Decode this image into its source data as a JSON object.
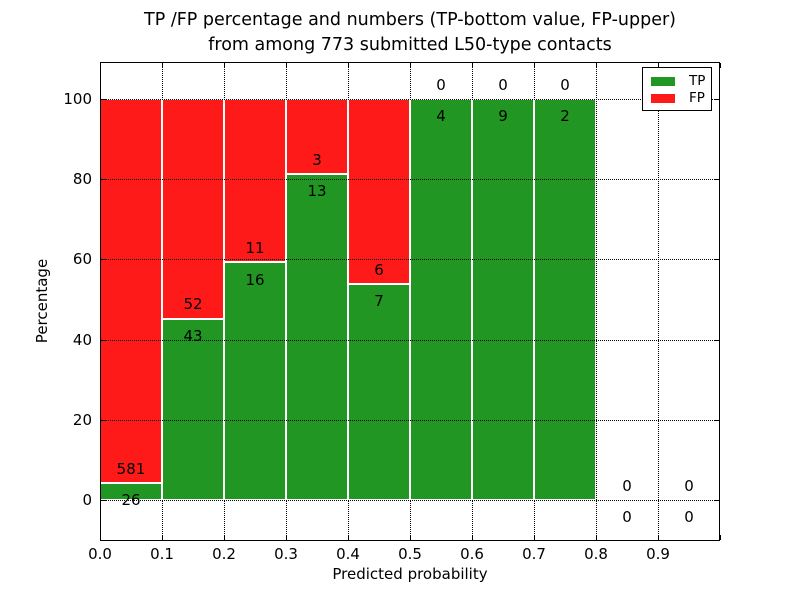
{
  "chart_data": {
    "type": "bar",
    "stacked": true,
    "title_lines": [
      "TP /FP percentage and numbers (TP-bottom value, FP-upper)",
      "from among 773 submitted L50-type contacts"
    ],
    "xlabel": "Predicted probability",
    "ylabel": "Percentage",
    "xlim": [
      0.0,
      1.0
    ],
    "ylim": [
      -10.2,
      109.2
    ],
    "x_tick_labels": [
      "0.0",
      "0.1",
      "0.2",
      "0.3",
      "0.4",
      "0.5",
      "0.6",
      "0.7",
      "0.8",
      "0.9"
    ],
    "y_tick_values": [
      0,
      20,
      40,
      60,
      80,
      100
    ],
    "grid_style": "dotted",
    "total_contacts": 773,
    "annotation_note": "TP-bottom value, FP-upper",
    "legend": {
      "position": "upper right",
      "entries": [
        {
          "label": "TP",
          "color": "#229622"
        },
        {
          "label": "FP",
          "color": "#ff1a1a"
        }
      ]
    },
    "bars": [
      {
        "bin_start": 0.0,
        "bin_end": 0.1,
        "tp_count": 26,
        "fp_count": 581,
        "tp_pct": 4.28,
        "fp_pct": 95.72
      },
      {
        "bin_start": 0.1,
        "bin_end": 0.2,
        "tp_count": 43,
        "fp_count": 52,
        "tp_pct": 45.26,
        "fp_pct": 54.74
      },
      {
        "bin_start": 0.2,
        "bin_end": 0.3,
        "tp_count": 16,
        "fp_count": 11,
        "tp_pct": 59.26,
        "fp_pct": 40.74
      },
      {
        "bin_start": 0.3,
        "bin_end": 0.4,
        "tp_count": 13,
        "fp_count": 3,
        "tp_pct": 81.25,
        "fp_pct": 18.75
      },
      {
        "bin_start": 0.4,
        "bin_end": 0.5,
        "tp_count": 7,
        "fp_count": 6,
        "tp_pct": 53.85,
        "fp_pct": 46.15
      },
      {
        "bin_start": 0.5,
        "bin_end": 0.6,
        "tp_count": 4,
        "fp_count": 0,
        "tp_pct": 100,
        "fp_pct": 0
      },
      {
        "bin_start": 0.6,
        "bin_end": 0.7,
        "tp_count": 9,
        "fp_count": 0,
        "tp_pct": 100,
        "fp_pct": 0
      },
      {
        "bin_start": 0.7,
        "bin_end": 0.8,
        "tp_count": 2,
        "fp_count": 0,
        "tp_pct": 100,
        "fp_pct": 0
      },
      {
        "bin_start": 0.8,
        "bin_end": 0.9,
        "tp_count": 0,
        "fp_count": 0,
        "tp_pct": 0,
        "fp_pct": 0
      },
      {
        "bin_start": 0.9,
        "bin_end": 1.0,
        "tp_count": 0,
        "fp_count": 0,
        "tp_pct": 0,
        "fp_pct": 0
      }
    ]
  }
}
